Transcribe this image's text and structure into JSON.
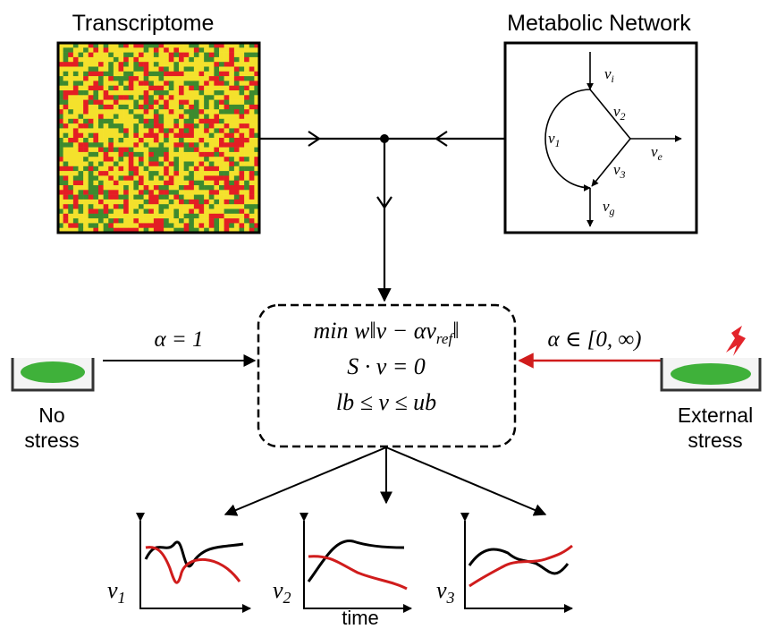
{
  "panels": {
    "transcriptome": {
      "title": "Transcriptome"
    },
    "network": {
      "title": "Metabolic Network",
      "fluxes": [
        {
          "symbol": "v",
          "sub": "i"
        },
        {
          "symbol": "v",
          "sub": "2"
        },
        {
          "symbol": "v",
          "sub": "1"
        },
        {
          "symbol": "v",
          "sub": "e"
        },
        {
          "symbol": "v",
          "sub": "3"
        },
        {
          "symbol": "v",
          "sub": "g"
        }
      ]
    }
  },
  "conditions": [
    {
      "alpha": "α = 1",
      "label": [
        "No",
        "stress"
      ]
    },
    {
      "alpha": "α ∈ [0, ∞)",
      "label": [
        "External",
        "stress"
      ]
    }
  ],
  "model": {
    "lines": [
      {
        "text": "min w‖v − αv",
        "sub": "ref",
        "tail": "‖"
      },
      {
        "text": "S · v = 0"
      },
      {
        "text": "lb ≤ v ≤ ub"
      }
    ]
  },
  "plots": {
    "panels": [
      {
        "symbol": "v",
        "sub": "1"
      },
      {
        "symbol": "v",
        "sub": "2"
      },
      {
        "symbol": "v",
        "sub": "3"
      }
    ],
    "x_label": "time"
  }
}
